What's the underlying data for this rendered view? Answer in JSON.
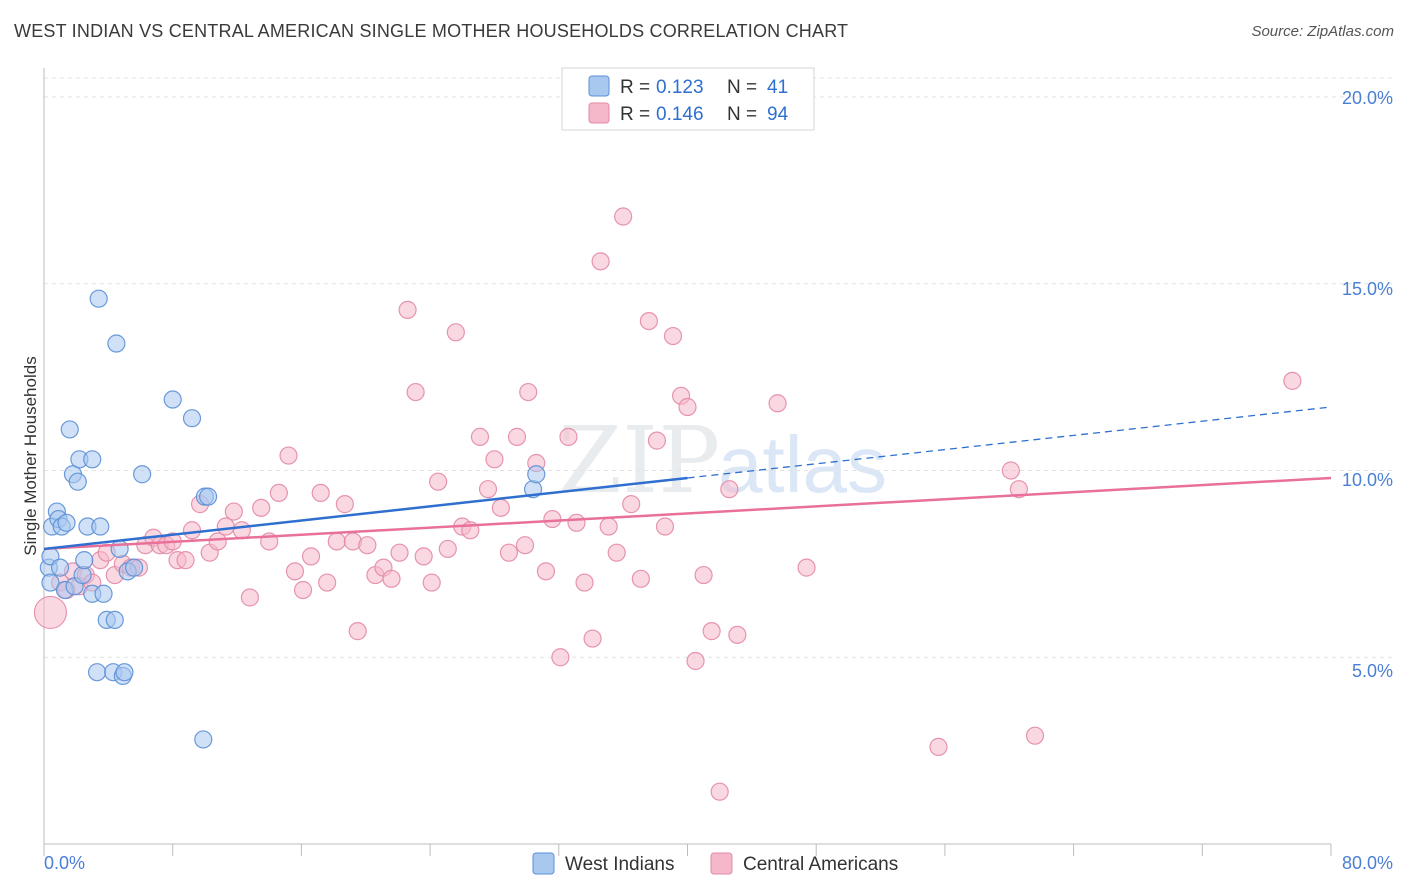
{
  "header": {
    "title": "WEST INDIAN VS CENTRAL AMERICAN SINGLE MOTHER HOUSEHOLDS CORRELATION CHART",
    "source": "Source: ZipAtlas.com"
  },
  "watermark": {
    "zip": "ZIP",
    "atlas": "atlas"
  },
  "legend_box": {
    "rows": [
      {
        "r_label": "R = ",
        "r_value": "0.123",
        "n_label": "N = ",
        "n_value": "41"
      },
      {
        "r_label": "R = ",
        "r_value": "0.146",
        "n_label": "N = ",
        "n_value": "94"
      }
    ]
  },
  "chart_data": {
    "type": "scatter",
    "title": "WEST INDIAN VS CENTRAL AMERICAN SINGLE MOTHER HOUSEHOLDS CORRELATION CHART",
    "xlabel": "",
    "ylabel": "Single Mother Households",
    "xlim": [
      0,
      80
    ],
    "ylim": [
      0,
      20
    ],
    "x_tick_labels": [
      "0.0%",
      "80.0%"
    ],
    "y_ticks": [
      5,
      10,
      15,
      20
    ],
    "y_tick_labels": [
      "5.0%",
      "10.0%",
      "15.0%",
      "20.0%"
    ],
    "grid": true,
    "legend_position": "bottom",
    "colors": {
      "west_fill": "#a9c8f0",
      "west_stroke": "#5b8fd6",
      "west_line": "#2f6fd0",
      "central_fill": "#f5b8cb",
      "central_stroke": "#e38aa6",
      "central_line": "#e8709a",
      "axis_text": "#4a7fd4"
    },
    "series": [
      {
        "name": "West Indians",
        "r": 0.123,
        "n": 41,
        "trend": {
          "x0": 0,
          "y0": 7.9,
          "x1": 40,
          "y1": 9.8,
          "dash_x1": 80,
          "dash_y1": 11.7
        },
        "points": [
          [
            0.3,
            7.4
          ],
          [
            0.4,
            7.0
          ],
          [
            0.4,
            7.7
          ],
          [
            0.5,
            8.5
          ],
          [
            0.8,
            8.9
          ],
          [
            0.9,
            8.7
          ],
          [
            1.0,
            7.4
          ],
          [
            1.1,
            8.5
          ],
          [
            1.3,
            6.8
          ],
          [
            1.4,
            8.6
          ],
          [
            1.6,
            11.1
          ],
          [
            1.8,
            9.9
          ],
          [
            1.9,
            6.9
          ],
          [
            2.1,
            9.7
          ],
          [
            2.2,
            10.3
          ],
          [
            2.4,
            7.2
          ],
          [
            2.5,
            7.6
          ],
          [
            2.7,
            8.5
          ],
          [
            3.0,
            10.3
          ],
          [
            3.0,
            6.7
          ],
          [
            3.3,
            4.6
          ],
          [
            3.4,
            14.6
          ],
          [
            3.5,
            8.5
          ],
          [
            3.7,
            6.7
          ],
          [
            3.9,
            6.0
          ],
          [
            4.3,
            4.6
          ],
          [
            4.4,
            6.0
          ],
          [
            4.5,
            13.4
          ],
          [
            4.7,
            7.9
          ],
          [
            4.9,
            4.5
          ],
          [
            5.0,
            4.6
          ],
          [
            5.2,
            7.3
          ],
          [
            5.6,
            7.4
          ],
          [
            6.1,
            9.9
          ],
          [
            8.0,
            11.9
          ],
          [
            9.2,
            11.4
          ],
          [
            9.9,
            2.8
          ],
          [
            10.0,
            9.3
          ],
          [
            10.2,
            9.3
          ],
          [
            30.4,
            9.5
          ],
          [
            30.6,
            9.9
          ]
        ]
      },
      {
        "name": "Central Americans",
        "r": 0.146,
        "n": 94,
        "trend": {
          "x0": 0,
          "y0": 7.9,
          "x1": 80,
          "y1": 9.8
        },
        "points": [
          [
            0.4,
            6.2
          ],
          [
            1.0,
            7.0
          ],
          [
            1.4,
            6.8
          ],
          [
            1.8,
            7.3
          ],
          [
            2.2,
            6.9
          ],
          [
            2.6,
            7.2
          ],
          [
            3.0,
            7.0
          ],
          [
            3.5,
            7.6
          ],
          [
            3.9,
            7.8
          ],
          [
            4.4,
            7.2
          ],
          [
            4.9,
            7.5
          ],
          [
            5.4,
            7.4
          ],
          [
            5.9,
            7.4
          ],
          [
            6.3,
            8.0
          ],
          [
            6.8,
            8.2
          ],
          [
            7.2,
            8.0
          ],
          [
            7.6,
            8.0
          ],
          [
            8.0,
            8.1
          ],
          [
            8.3,
            7.6
          ],
          [
            8.8,
            7.6
          ],
          [
            9.2,
            8.4
          ],
          [
            9.7,
            9.1
          ],
          [
            10.3,
            7.8
          ],
          [
            10.8,
            8.1
          ],
          [
            11.3,
            8.5
          ],
          [
            11.8,
            8.9
          ],
          [
            12.3,
            8.4
          ],
          [
            12.8,
            6.6
          ],
          [
            13.5,
            9.0
          ],
          [
            14.0,
            8.1
          ],
          [
            14.6,
            9.4
          ],
          [
            15.2,
            10.4
          ],
          [
            15.6,
            7.3
          ],
          [
            16.1,
            6.8
          ],
          [
            16.6,
            7.7
          ],
          [
            17.2,
            9.4
          ],
          [
            17.6,
            7.0
          ],
          [
            18.2,
            8.1
          ],
          [
            18.7,
            9.1
          ],
          [
            19.2,
            8.1
          ],
          [
            19.5,
            5.7
          ],
          [
            20.1,
            8.0
          ],
          [
            20.6,
            7.2
          ],
          [
            21.1,
            7.4
          ],
          [
            21.6,
            7.1
          ],
          [
            22.1,
            7.8
          ],
          [
            22.6,
            14.3
          ],
          [
            23.1,
            12.1
          ],
          [
            23.6,
            7.7
          ],
          [
            24.1,
            7.0
          ],
          [
            24.5,
            9.7
          ],
          [
            25.1,
            7.9
          ],
          [
            25.6,
            13.7
          ],
          [
            26.0,
            8.5
          ],
          [
            26.5,
            8.4
          ],
          [
            27.1,
            10.9
          ],
          [
            27.6,
            9.5
          ],
          [
            28.0,
            10.3
          ],
          [
            28.4,
            9.0
          ],
          [
            28.9,
            7.8
          ],
          [
            29.4,
            10.9
          ],
          [
            29.9,
            8.0
          ],
          [
            30.1,
            12.1
          ],
          [
            30.6,
            10.2
          ],
          [
            31.2,
            7.3
          ],
          [
            31.6,
            8.7
          ],
          [
            32.1,
            5.0
          ],
          [
            32.6,
            10.9
          ],
          [
            33.1,
            8.6
          ],
          [
            33.6,
            7.0
          ],
          [
            34.1,
            5.5
          ],
          [
            34.6,
            15.6
          ],
          [
            35.1,
            8.5
          ],
          [
            35.6,
            7.8
          ],
          [
            36.0,
            16.8
          ],
          [
            36.5,
            9.1
          ],
          [
            37.1,
            7.1
          ],
          [
            37.6,
            14.0
          ],
          [
            38.1,
            10.8
          ],
          [
            38.6,
            8.5
          ],
          [
            39.1,
            13.6
          ],
          [
            39.6,
            12.0
          ],
          [
            40.0,
            11.7
          ],
          [
            40.5,
            4.9
          ],
          [
            41.0,
            7.2
          ],
          [
            41.5,
            5.7
          ],
          [
            42.0,
            1.4
          ],
          [
            42.6,
            9.5
          ],
          [
            43.1,
            5.6
          ],
          [
            45.6,
            11.8
          ],
          [
            47.4,
            7.4
          ],
          [
            55.6,
            2.6
          ],
          [
            60.1,
            10.0
          ],
          [
            60.6,
            9.5
          ],
          [
            61.6,
            2.9
          ],
          [
            77.6,
            12.4
          ]
        ]
      }
    ]
  }
}
